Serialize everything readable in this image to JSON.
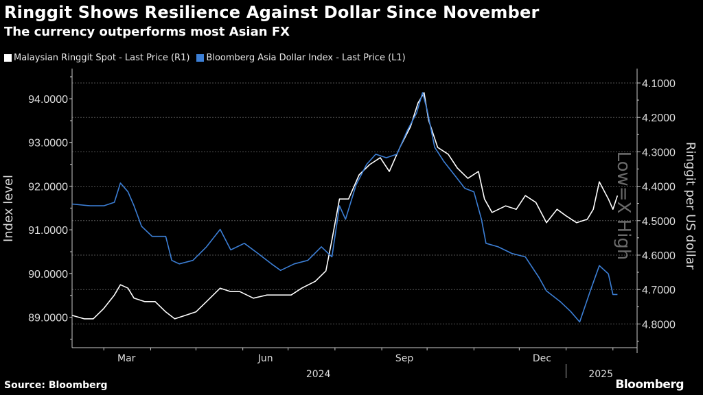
{
  "title": "Ringgit Shows Resilience Against Dollar Since November",
  "subtitle": "The currency outperforms most Asian FX",
  "source": "Source: Bloomberg",
  "logo": "Bloomberg",
  "chart_data": {
    "type": "line",
    "x_unit": "days since 2024-02-09",
    "x_range": [
      0,
      374
    ],
    "x_tick_labels": [
      {
        "label": "Mar",
        "day": 36
      },
      {
        "label": "Jun",
        "day": 128
      },
      {
        "label": "Sep",
        "day": 220
      },
      {
        "label": "Dec",
        "day": 311
      }
    ],
    "month_start_days": [
      21,
      52,
      82,
      113,
      143,
      174,
      205,
      235,
      266,
      296,
      327,
      358
    ],
    "year_labels": [
      {
        "label": "2024",
        "day": 163
      },
      {
        "label": "2025",
        "day": 350
      }
    ],
    "year_divider_day": 327,
    "left_axis": {
      "label": "Index level",
      "range": [
        88.3,
        94.6
      ],
      "ticks": [
        89,
        90,
        91,
        92,
        93,
        94
      ],
      "tick_labels": [
        "89.0000",
        "90.0000",
        "91.0000",
        "92.0000",
        "93.0000",
        "94.0000"
      ]
    },
    "right_axis": {
      "label": "Ringgit per US dollar",
      "inverted": true,
      "watermark": "Low=X High",
      "range": [
        4.06,
        4.87
      ],
      "ticks": [
        4.1,
        4.2,
        4.3,
        4.4,
        4.5,
        4.6,
        4.7,
        4.8
      ],
      "tick_labels": [
        "4.1000",
        "4.2000",
        "4.3000",
        "4.4000",
        "4.5000",
        "4.6000",
        "4.7000",
        "4.8000"
      ]
    },
    "series": [
      {
        "name": "Malaysian Ringgit Spot - Last Price (R1)",
        "axis": "right",
        "color": "#ffffff",
        "points": [
          [
            0,
            4.775
          ],
          [
            8,
            4.785
          ],
          [
            14,
            4.785
          ],
          [
            21,
            4.755
          ],
          [
            28,
            4.716
          ],
          [
            32,
            4.686
          ],
          [
            37,
            4.696
          ],
          [
            41,
            4.725
          ],
          [
            48,
            4.735
          ],
          [
            55,
            4.735
          ],
          [
            62,
            4.765
          ],
          [
            68,
            4.785
          ],
          [
            75,
            4.775
          ],
          [
            82,
            4.765
          ],
          [
            89,
            4.735
          ],
          [
            98,
            4.696
          ],
          [
            105,
            4.706
          ],
          [
            111,
            4.706
          ],
          [
            120,
            4.725
          ],
          [
            129,
            4.716
          ],
          [
            138,
            4.716
          ],
          [
            145,
            4.716
          ],
          [
            152,
            4.696
          ],
          [
            161,
            4.676
          ],
          [
            168,
            4.646
          ],
          [
            172,
            4.556
          ],
          [
            177,
            4.437
          ],
          [
            183,
            4.437
          ],
          [
            190,
            4.367
          ],
          [
            197,
            4.337
          ],
          [
            204,
            4.317
          ],
          [
            210,
            4.357
          ],
          [
            217,
            4.287
          ],
          [
            224,
            4.227
          ],
          [
            229,
            4.158
          ],
          [
            233,
            4.128
          ],
          [
            236,
            4.208
          ],
          [
            242,
            4.287
          ],
          [
            249,
            4.307
          ],
          [
            255,
            4.347
          ],
          [
            262,
            4.377
          ],
          [
            269,
            4.357
          ],
          [
            273,
            4.437
          ],
          [
            278,
            4.476
          ],
          [
            287,
            4.457
          ],
          [
            294,
            4.467
          ],
          [
            300,
            4.427
          ],
          [
            307,
            4.447
          ],
          [
            314,
            4.506
          ],
          [
            321,
            4.467
          ],
          [
            327,
            4.486
          ],
          [
            334,
            4.506
          ],
          [
            341,
            4.496
          ],
          [
            345,
            4.467
          ],
          [
            349,
            4.387
          ],
          [
            355,
            4.437
          ],
          [
            358,
            4.467
          ],
          [
            361,
            4.427
          ]
        ]
      },
      {
        "name": "Bloomberg Asia Dollar Index - Last Price (L1)",
        "axis": "left",
        "color": "#3c7fd6",
        "points": [
          [
            0,
            91.59
          ],
          [
            12,
            91.55
          ],
          [
            21,
            91.55
          ],
          [
            28,
            91.63
          ],
          [
            32,
            92.07
          ],
          [
            37,
            91.87
          ],
          [
            41,
            91.55
          ],
          [
            46,
            91.08
          ],
          [
            53,
            90.85
          ],
          [
            62,
            90.85
          ],
          [
            66,
            90.3
          ],
          [
            71,
            90.22
          ],
          [
            80,
            90.3
          ],
          [
            89,
            90.61
          ],
          [
            98,
            91.01
          ],
          [
            105,
            90.54
          ],
          [
            114,
            90.69
          ],
          [
            123,
            90.46
          ],
          [
            132,
            90.22
          ],
          [
            138,
            90.07
          ],
          [
            147,
            90.22
          ],
          [
            156,
            90.3
          ],
          [
            165,
            90.61
          ],
          [
            172,
            90.38
          ],
          [
            177,
            91.55
          ],
          [
            181,
            91.24
          ],
          [
            188,
            92.03
          ],
          [
            195,
            92.5
          ],
          [
            201,
            92.73
          ],
          [
            208,
            92.65
          ],
          [
            215,
            92.73
          ],
          [
            222,
            93.28
          ],
          [
            228,
            93.67
          ],
          [
            232,
            94.14
          ],
          [
            235,
            93.75
          ],
          [
            240,
            92.89
          ],
          [
            246,
            92.57
          ],
          [
            253,
            92.26
          ],
          [
            260,
            91.95
          ],
          [
            266,
            91.87
          ],
          [
            271,
            91.24
          ],
          [
            274,
            90.69
          ],
          [
            282,
            90.61
          ],
          [
            291,
            90.46
          ],
          [
            300,
            90.38
          ],
          [
            309,
            89.91
          ],
          [
            314,
            89.6
          ],
          [
            323,
            89.36
          ],
          [
            330,
            89.13
          ],
          [
            336,
            88.89
          ],
          [
            343,
            89.6
          ],
          [
            349,
            90.18
          ],
          [
            355,
            89.99
          ],
          [
            358,
            89.52
          ],
          [
            361,
            89.52
          ]
        ]
      }
    ]
  }
}
